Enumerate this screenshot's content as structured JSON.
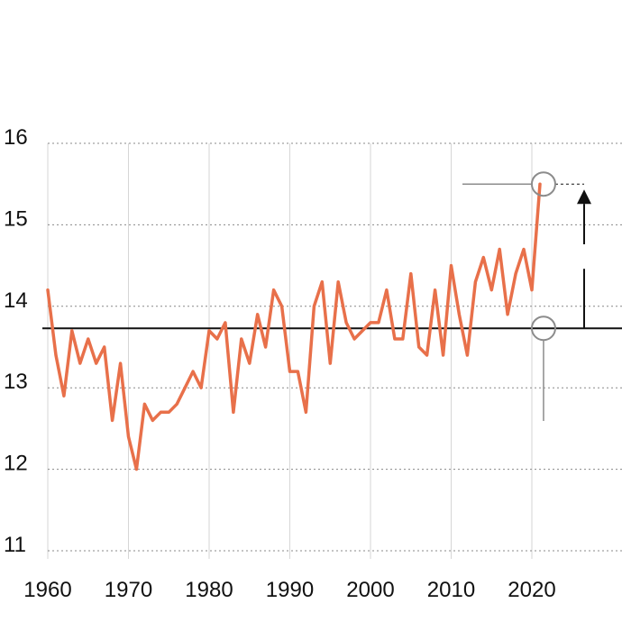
{
  "chart_data": {
    "type": "line",
    "title": "",
    "xlabel": "",
    "ylabel": "",
    "xlim": [
      1959.5,
      2030
    ],
    "ylim": [
      11,
      16
    ],
    "xticks": [
      1960,
      1970,
      1980,
      1990,
      2000,
      2010,
      2020
    ],
    "yticks": [
      11,
      12,
      13,
      14,
      15,
      16
    ],
    "grid": {
      "horizontal": "dotted",
      "vertical": "solid-light"
    },
    "colors": {
      "series": "#e8704a",
      "baseline": "#111111",
      "annotation": "#8c8c8c"
    },
    "reference_line": {
      "y": 13.73
    },
    "series": [
      {
        "x": [
          1960,
          1961,
          1962,
          1963,
          1964,
          1965,
          1966,
          1967,
          1968,
          1969,
          1970,
          1971,
          1972,
          1973,
          1974,
          1975,
          1976,
          1977,
          1978,
          1979,
          1980,
          1981,
          1982,
          1983,
          1984,
          1985,
          1986,
          1987,
          1988,
          1989,
          1990,
          1991,
          1992,
          1993,
          1994,
          1995,
          1996,
          1997,
          1998,
          1999,
          2000,
          2001,
          2002,
          2003,
          2004,
          2005,
          2006,
          2007,
          2008,
          2009,
          2010,
          2011,
          2012,
          2013,
          2014,
          2015,
          2016,
          2017,
          2018,
          2019,
          2020,
          2021
        ],
        "values": [
          14.2,
          13.4,
          12.9,
          13.7,
          13.3,
          13.6,
          13.3,
          13.5,
          12.6,
          13.3,
          12.4,
          12.0,
          12.8,
          12.6,
          12.7,
          12.7,
          12.8,
          13.0,
          13.2,
          13.0,
          13.7,
          13.6,
          13.8,
          12.7,
          13.6,
          13.3,
          13.9,
          13.5,
          14.2,
          14.0,
          13.2,
          13.2,
          12.7,
          14.0,
          14.3,
          13.3,
          14.3,
          13.8,
          13.6,
          13.7,
          13.8,
          13.8,
          14.2,
          13.6,
          13.6,
          14.4,
          13.5,
          13.4,
          14.2,
          13.4,
          14.5,
          13.9,
          13.4,
          14.3,
          14.6,
          14.2,
          14.7,
          13.9,
          14.4,
          14.7,
          14.2,
          15.5
        ]
      }
    ],
    "annotations": [
      {
        "type": "circle",
        "x": 2021,
        "y": 15.5
      },
      {
        "type": "circle",
        "x": 2021,
        "y": 13.73
      },
      {
        "type": "arrow",
        "direction": "up",
        "from_y": 13.73,
        "to_y": 15.5
      }
    ]
  }
}
